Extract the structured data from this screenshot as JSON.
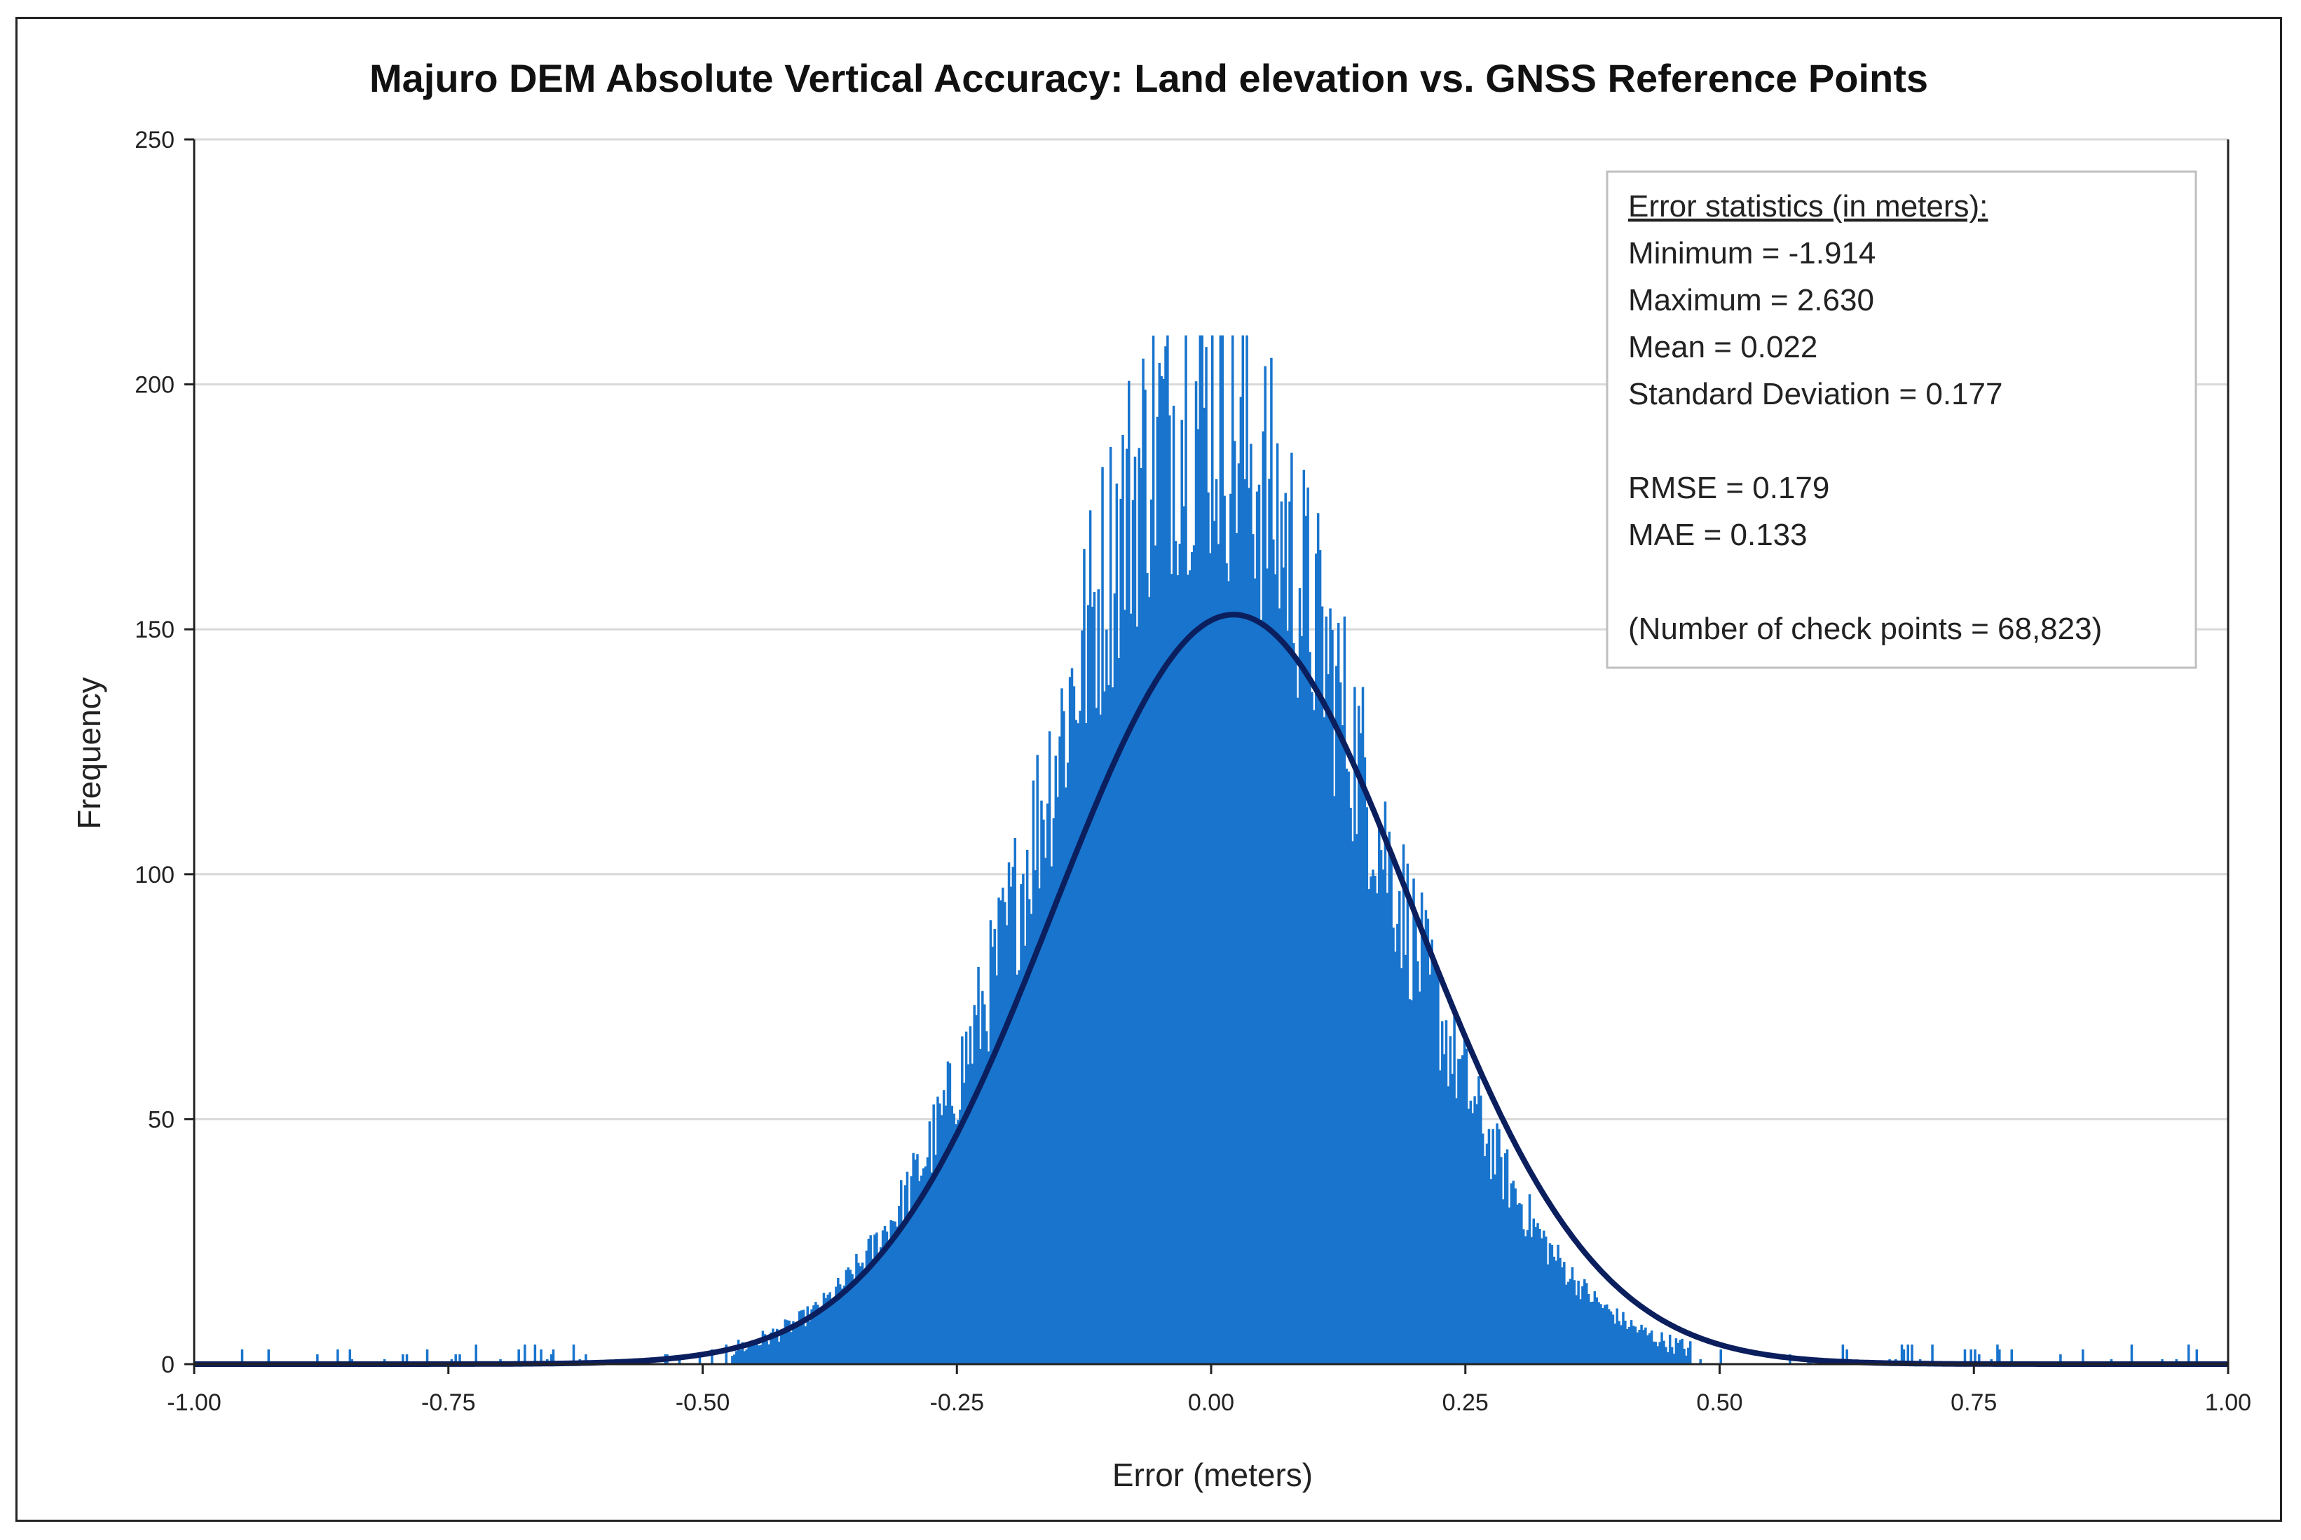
{
  "colors": {
    "bars": "#1874cd",
    "curve": "#0b1f5e",
    "grid": "#d9d9d9",
    "axis": "#222222"
  },
  "chart_data": {
    "type": "bar",
    "title": "Majuro DEM Absolute Vertical Accuracy: Land elevation vs. GNSS Reference Points",
    "xlabel": "Error (meters)",
    "ylabel": "Frequency",
    "xlim": [
      -1.0,
      1.0
    ],
    "ylim": [
      0,
      250
    ],
    "x_ticks": [
      "-1.00",
      "-0.75",
      "-0.50",
      "-0.25",
      "0.00",
      "0.25",
      "0.50",
      "0.75",
      "1.00"
    ],
    "y_ticks": [
      "0",
      "50",
      "100",
      "150",
      "200",
      "250"
    ],
    "grid": "horizontal",
    "histogram": {
      "bin_width": 0.002,
      "x_start": -1.0,
      "n_bins": 1000,
      "envelope_mean": 0.0,
      "envelope_sd": 0.165,
      "envelope_peak": 180,
      "max_observed": 210
    },
    "normal_fit": {
      "mean": 0.022,
      "sd": 0.177,
      "peak": 153
    },
    "stats_box": {
      "heading": "Error statistics (in meters):",
      "lines": [
        "Minimum = -1.914",
        "Maximum = 2.630",
        "Mean = 0.022",
        "Standard Deviation = 0.177",
        "",
        "RMSE = 0.179",
        "MAE = 0.133",
        "",
        "(Number of check points = 68,823)"
      ],
      "placement": "top-right"
    }
  }
}
